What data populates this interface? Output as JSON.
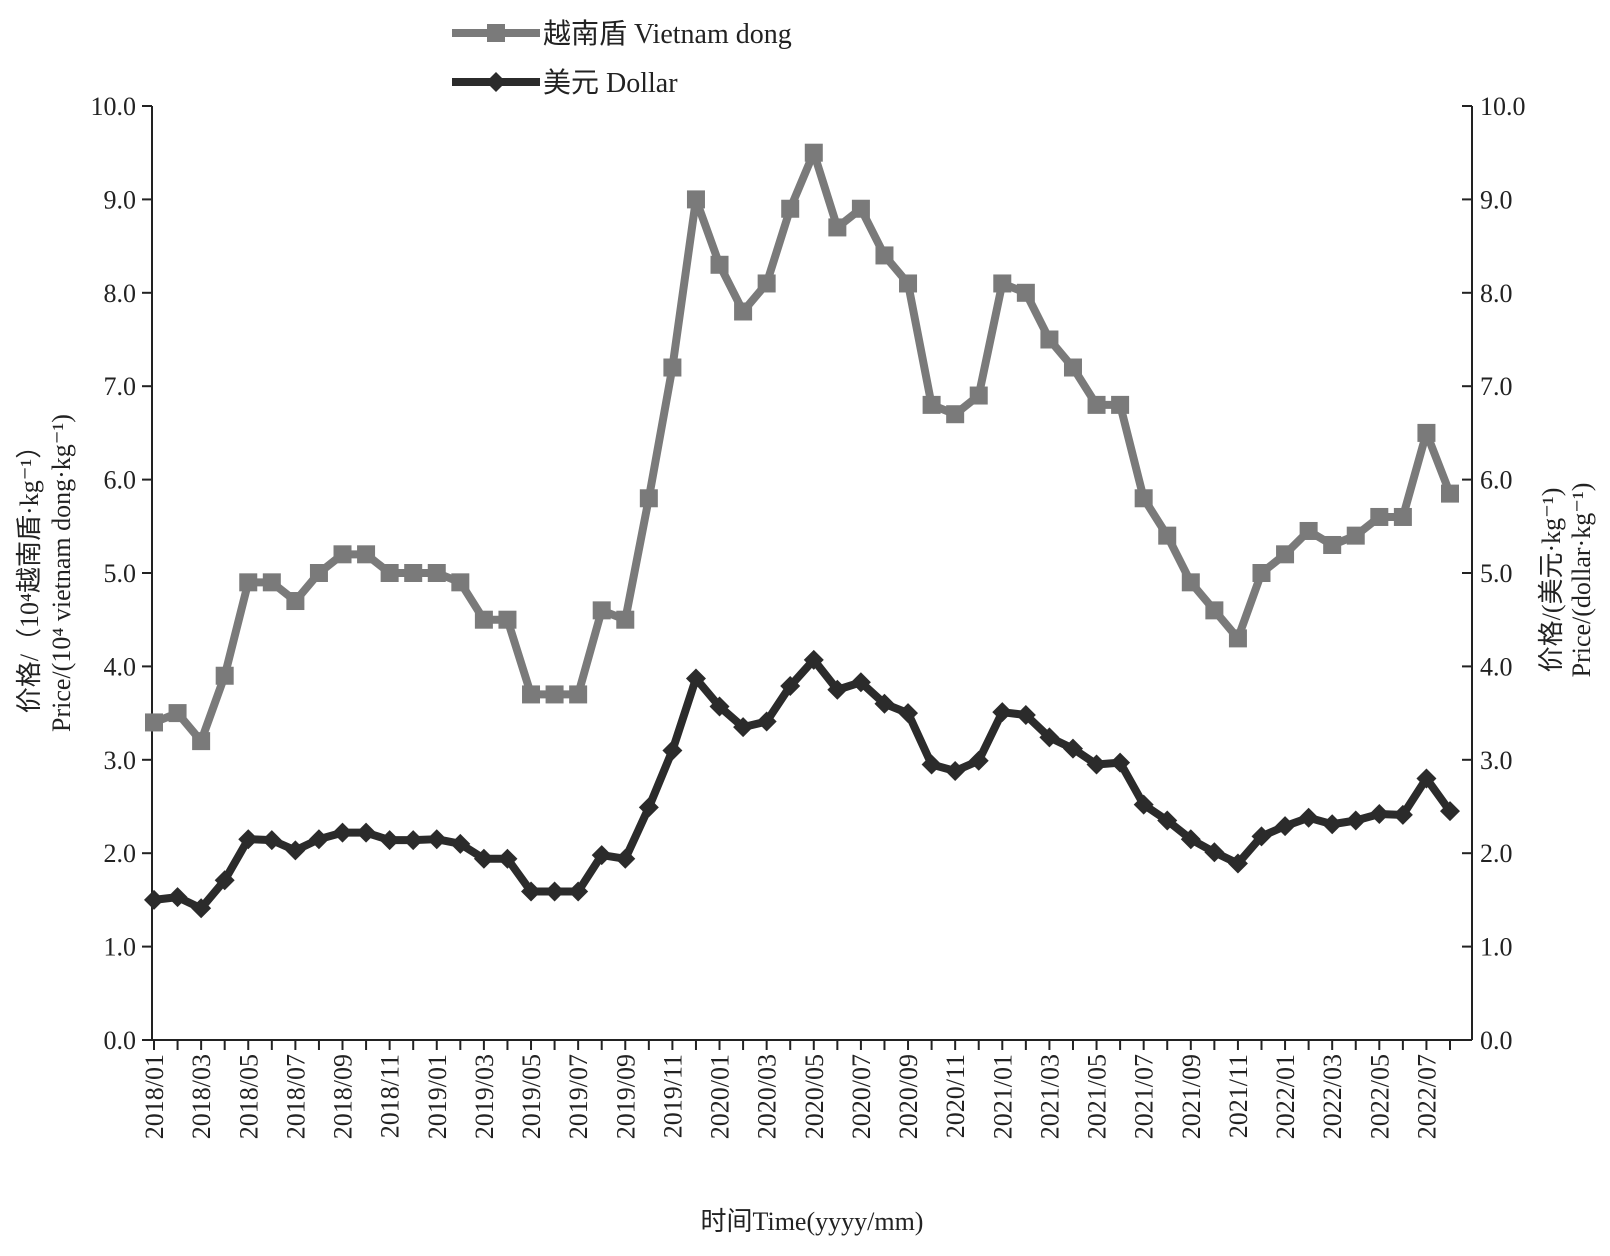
{
  "chart_data": {
    "type": "line",
    "x": [
      "2018/01",
      "2018/02",
      "2018/03",
      "2018/04",
      "2018/05",
      "2018/06",
      "2018/07",
      "2018/08",
      "2018/09",
      "2018/10",
      "2018/11",
      "2018/12",
      "2019/01",
      "2019/02",
      "2019/03",
      "2019/04",
      "2019/05",
      "2019/06",
      "2019/07",
      "2019/08",
      "2019/09",
      "2019/10",
      "2019/11",
      "2019/12",
      "2020/01",
      "2020/02",
      "2020/03",
      "2020/04",
      "2020/05",
      "2020/06",
      "2020/07",
      "2020/08",
      "2020/09",
      "2020/10",
      "2020/11",
      "2020/12",
      "2021/01",
      "2021/02",
      "2021/03",
      "2021/04",
      "2021/05",
      "2021/06",
      "2021/07",
      "2021/08",
      "2021/09",
      "2021/10",
      "2021/11",
      "2021/12",
      "2022/01",
      "2022/02",
      "2022/03",
      "2022/04",
      "2022/05",
      "2022/06",
      "2022/07",
      "2022/08"
    ],
    "x_tick_labels": [
      "2018/01",
      "2018/03",
      "2018/05",
      "2018/07",
      "2018/09",
      "2018/11",
      "2019/01",
      "2019/03",
      "2019/05",
      "2019/07",
      "2019/09",
      "2019/11",
      "2020/01",
      "2020/03",
      "2020/05",
      "2020/07",
      "2020/09",
      "2020/11",
      "2021/01",
      "2021/03",
      "2021/05",
      "2021/07",
      "2021/09",
      "2021/11",
      "2022/01",
      "2022/03",
      "2022/05",
      "2022/07"
    ],
    "series": [
      {
        "name": "越南盾 Vietnam dong",
        "axis": "left",
        "color": "#7a7a7a",
        "marker": "square",
        "values": [
          3.4,
          3.5,
          3.2,
          3.9,
          4.9,
          4.9,
          4.7,
          5.0,
          5.2,
          5.2,
          5.0,
          5.0,
          5.0,
          4.9,
          4.5,
          4.5,
          3.7,
          3.7,
          3.7,
          4.6,
          4.5,
          5.8,
          7.2,
          9.0,
          8.3,
          7.8,
          8.1,
          8.9,
          9.5,
          8.7,
          8.9,
          8.4,
          8.1,
          6.8,
          6.7,
          6.9,
          8.1,
          8.0,
          7.5,
          7.2,
          6.8,
          6.8,
          5.8,
          5.4,
          4.9,
          4.6,
          4.3,
          5.0,
          5.2,
          5.45,
          5.3,
          5.4,
          5.6,
          5.6,
          6.5,
          5.85
        ]
      },
      {
        "name": "美元 Dollar",
        "axis": "right",
        "color": "#2b2b2b",
        "marker": "diamond",
        "values": [
          1.5,
          1.53,
          1.41,
          1.71,
          2.15,
          2.14,
          2.03,
          2.15,
          2.22,
          2.22,
          2.14,
          2.14,
          2.15,
          2.1,
          1.94,
          1.94,
          1.59,
          1.59,
          1.59,
          1.98,
          1.94,
          2.49,
          3.1,
          3.87,
          3.57,
          3.35,
          3.41,
          3.79,
          4.07,
          3.75,
          3.83,
          3.6,
          3.5,
          2.95,
          2.88,
          2.99,
          3.51,
          3.48,
          3.24,
          3.12,
          2.95,
          2.97,
          2.52,
          2.35,
          2.15,
          2.01,
          1.89,
          2.18,
          2.29,
          2.38,
          2.31,
          2.35,
          2.42,
          2.41,
          2.8,
          2.45
        ]
      }
    ],
    "y_left": {
      "label_cn": "价格/（10⁴越南盾·kg⁻¹）",
      "label_en": "Price/(10⁴ vietnam dong·kg⁻¹)",
      "ylim": [
        0,
        10
      ],
      "ticks": [
        "0.0",
        "1.0",
        "2.0",
        "3.0",
        "4.0",
        "5.0",
        "6.0",
        "7.0",
        "8.0",
        "9.0",
        "10.0"
      ]
    },
    "y_right": {
      "label_cn": "价格/(美元·kg⁻¹)",
      "label_en": "Price/(dollar·kg⁻¹)",
      "ylim": [
        0,
        10
      ],
      "ticks": [
        "0.0",
        "1.0",
        "2.0",
        "3.0",
        "4.0",
        "5.0",
        "6.0",
        "7.0",
        "8.0",
        "9.0",
        "10.0"
      ]
    },
    "xlabel": "时间Time(yyyy/mm)",
    "legend_position": "top-left",
    "grid": false
  }
}
